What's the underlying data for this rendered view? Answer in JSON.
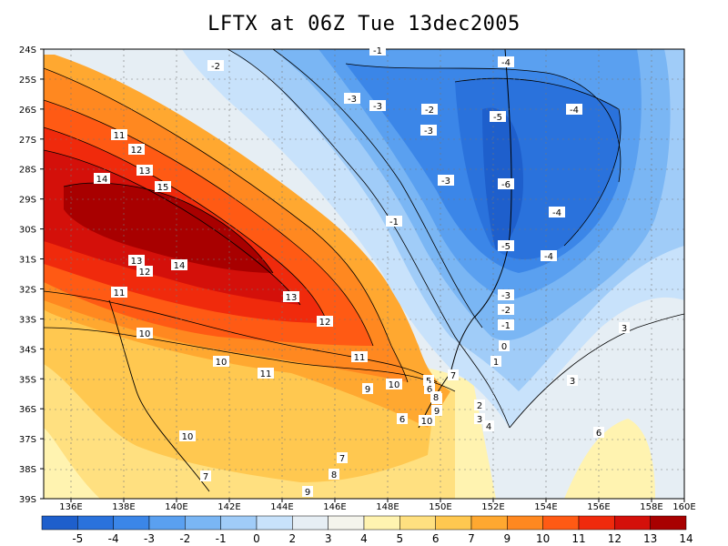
{
  "title": "LFTX at 06Z Tue 13dec2005",
  "lat_labels": [
    "24S",
    "25S",
    "26S",
    "27S",
    "28S",
    "29S",
    "30S",
    "31S",
    "32S",
    "33S",
    "34S",
    "35S",
    "36S",
    "37S",
    "38S",
    "39S"
  ],
  "lon_labels": [
    "136E",
    "138E",
    "140E",
    "142E",
    "144E",
    "146E",
    "148E",
    "150E",
    "152E",
    "154E",
    "156E",
    "158E",
    "160E"
  ],
  "colorbar": {
    "labels": [
      "-5",
      "-4",
      "-3",
      "-2",
      "-1",
      "0",
      "2",
      "3",
      "4",
      "5",
      "6",
      "7",
      "9",
      "10",
      "11",
      "12",
      "13",
      "14"
    ],
    "colors": [
      "#1e5fcc",
      "#2a72dc",
      "#3b86e8",
      "#5aa0f0",
      "#7ab6f4",
      "#a0ccf8",
      "#c8e2fb",
      "#e6eef4",
      "#f4f4ec",
      "#fff3b0",
      "#ffe080",
      "#ffc850",
      "#ffa830",
      "#ff8820",
      "#ff5a14",
      "#f02a0c",
      "#d4100a",
      "#a80000"
    ]
  },
  "contour_labels": [
    {
      "text": "-1"
    },
    {
      "text": "-2"
    },
    {
      "text": "-4"
    },
    {
      "text": "-3"
    },
    {
      "text": "-3"
    },
    {
      "text": "-2"
    },
    {
      "text": "-5"
    },
    {
      "text": "-4"
    },
    {
      "text": "-3"
    },
    {
      "text": "-3"
    },
    {
      "text": "-6"
    },
    {
      "text": "-1"
    },
    {
      "text": "-4"
    },
    {
      "text": "-5"
    },
    {
      "text": "-4"
    },
    {
      "text": "-3"
    },
    {
      "text": "-2"
    },
    {
      "text": "-1"
    },
    {
      "text": "0"
    },
    {
      "text": "1"
    },
    {
      "text": "2"
    },
    {
      "text": "3"
    },
    {
      "text": "4"
    },
    {
      "text": "3"
    },
    {
      "text": "3"
    },
    {
      "text": "6"
    },
    {
      "text": "11"
    },
    {
      "text": "12"
    },
    {
      "text": "13"
    },
    {
      "text": "14"
    },
    {
      "text": "15"
    },
    {
      "text": "13"
    },
    {
      "text": "12"
    },
    {
      "text": "14"
    },
    {
      "text": "11"
    },
    {
      "text": "13"
    },
    {
      "text": "12"
    },
    {
      "text": "10"
    },
    {
      "text": "11"
    },
    {
      "text": "10"
    },
    {
      "text": "11"
    },
    {
      "text": "9"
    },
    {
      "text": "10"
    },
    {
      "text": "10"
    },
    {
      "text": "5"
    },
    {
      "text": "6"
    },
    {
      "text": "7"
    },
    {
      "text": "8"
    },
    {
      "text": "9"
    },
    {
      "text": "6"
    },
    {
      "text": "10"
    },
    {
      "text": "8"
    },
    {
      "text": "7"
    },
    {
      "text": "8"
    },
    {
      "text": "9"
    },
    {
      "text": "7"
    },
    {
      "text": "2"
    },
    {
      "text": "3"
    },
    {
      "text": "4"
    }
  ]
}
